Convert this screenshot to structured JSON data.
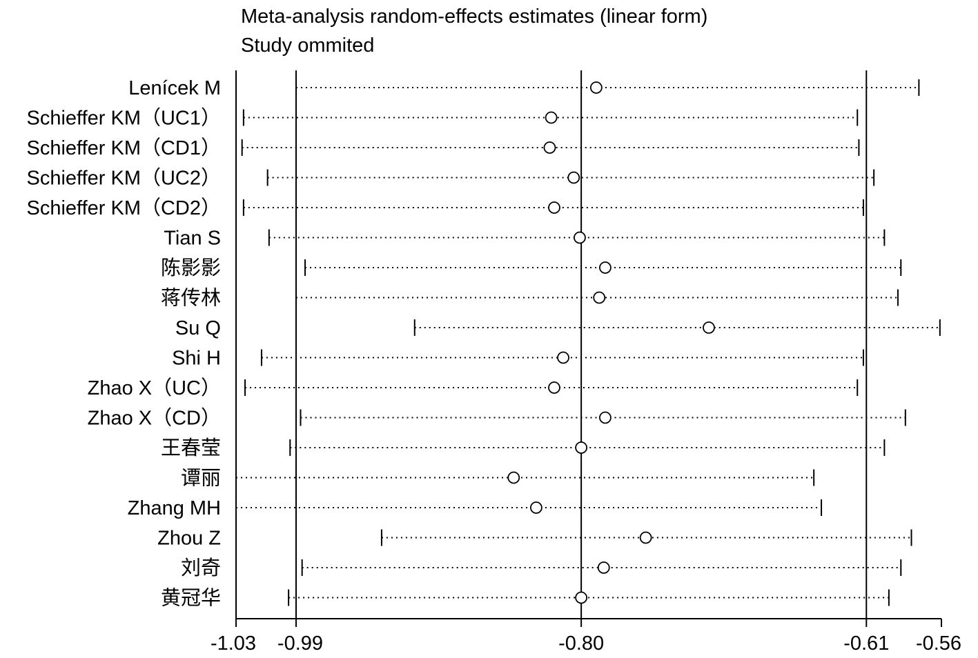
{
  "chart_data": {
    "type": "scatter",
    "title": "Meta-analysis random-effects estimates (linear form)",
    "subtitle": "Study ommited",
    "xlim": [
      -1.03,
      -0.56
    ],
    "x_ticks": [
      "-1.03",
      "-0.99",
      "-0.80",
      "-0.61",
      "-0.56"
    ],
    "reference_lines": [
      -0.99,
      -0.8,
      -0.61
    ],
    "studies": [
      {
        "name": "Lenícek M",
        "lower": -0.99,
        "estimate": -0.79,
        "upper": -0.575
      },
      {
        "name": "Schieffer KM（UC1）",
        "lower": -1.025,
        "estimate": -0.82,
        "upper": -0.616
      },
      {
        "name": "Schieffer KM（CD1）",
        "lower": -1.026,
        "estimate": -0.821,
        "upper": -0.615
      },
      {
        "name": "Schieffer KM（UC2）",
        "lower": -1.009,
        "estimate": -0.805,
        "upper": -0.605
      },
      {
        "name": "Schieffer KM（CD2）",
        "lower": -1.025,
        "estimate": -0.818,
        "upper": -0.612
      },
      {
        "name": "Tian S",
        "lower": -1.008,
        "estimate": -0.801,
        "upper": -0.598
      },
      {
        "name": "陈影影",
        "lower": -0.984,
        "estimate": -0.784,
        "upper": -0.587
      },
      {
        "name": "蒋传林",
        "lower": -0.99,
        "estimate": -0.788,
        "upper": -0.589
      },
      {
        "name": "Su Q",
        "lower": -0.911,
        "estimate": -0.715,
        "upper": -0.561
      },
      {
        "name": "Shi H",
        "lower": -1.013,
        "estimate": -0.812,
        "upper": -0.612
      },
      {
        "name": "Zhao X（UC）",
        "lower": -1.024,
        "estimate": -0.818,
        "upper": -0.616
      },
      {
        "name": "Zhao X（CD）",
        "lower": -0.987,
        "estimate": -0.784,
        "upper": -0.584
      },
      {
        "name": "王春莹",
        "lower": -0.994,
        "estimate": -0.8,
        "upper": -0.598
      },
      {
        "name": "谭丽",
        "lower": -1.03,
        "estimate": -0.845,
        "upper": -0.645
      },
      {
        "name": "Zhang MH",
        "lower": -1.03,
        "estimate": -0.83,
        "upper": -0.64
      },
      {
        "name": "Zhou Z",
        "lower": -0.933,
        "estimate": -0.757,
        "upper": -0.58
      },
      {
        "name": "刘奇",
        "lower": -0.986,
        "estimate": -0.785,
        "upper": -0.587
      },
      {
        "name": "黄冠华",
        "lower": -0.995,
        "estimate": -0.8,
        "upper": -0.595
      }
    ]
  }
}
